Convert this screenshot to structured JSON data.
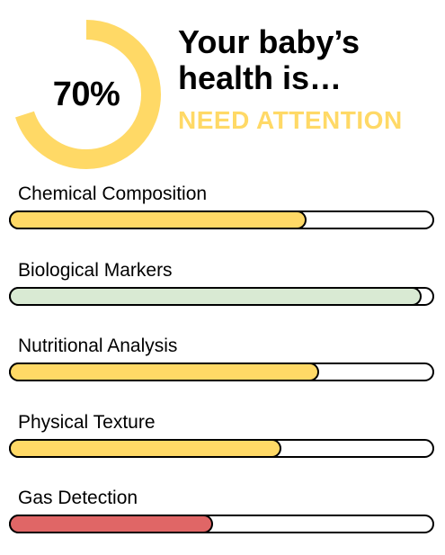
{
  "summary": {
    "score_label": "70%",
    "score_fraction": 0.7,
    "headline": "Your baby’s health is…",
    "status": "NEED ATTENTION",
    "accent_color": "#FFD966",
    "gauge_track_color": "#ffffff"
  },
  "metrics": [
    {
      "label": "Chemical Composition",
      "level": 0.7,
      "color": "#FFD966"
    },
    {
      "label": "Biological Markers",
      "level": 0.97,
      "color": "#D9EAD3"
    },
    {
      "label": "Nutritional Analysis",
      "level": 0.73,
      "color": "#FFD966"
    },
    {
      "label": "Physical Texture",
      "level": 0.64,
      "color": "#FFD966"
    },
    {
      "label": "Gas Detection",
      "level": 0.48,
      "color": "#E06666"
    }
  ]
}
